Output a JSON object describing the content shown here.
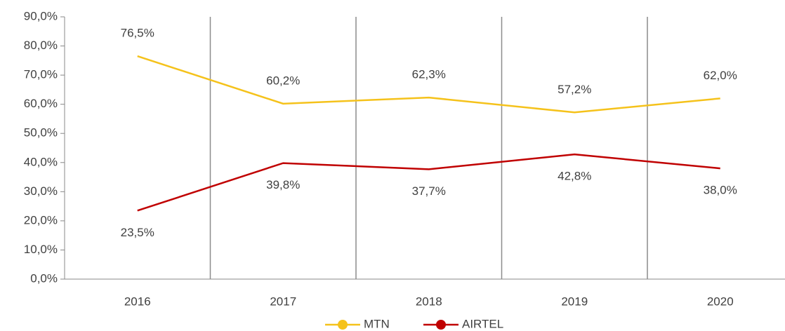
{
  "chart_data": {
    "type": "line",
    "categories": [
      "2016",
      "2017",
      "2018",
      "2019",
      "2020"
    ],
    "series": [
      {
        "name": "MTN",
        "color": "#f5c21b",
        "values": [
          76.5,
          60.2,
          62.3,
          57.2,
          62.0
        ],
        "value_labels": [
          "76,5%",
          "60,2%",
          "62,3%",
          "57,2%",
          "62,0%"
        ]
      },
      {
        "name": "AIRTEL",
        "color": "#c00000",
        "values": [
          23.5,
          39.8,
          37.7,
          42.8,
          38.0
        ],
        "value_labels": [
          "23,5%",
          "39,8%",
          "37,7%",
          "42,8%",
          "38,0%"
        ]
      }
    ],
    "ylim": [
      0,
      90
    ],
    "yticks": [
      {
        "value": 0,
        "label": "0,0%"
      },
      {
        "value": 10,
        "label": "10,0%"
      },
      {
        "value": 20,
        "label": "20,0%"
      },
      {
        "value": 30,
        "label": "30,0%"
      },
      {
        "value": 40,
        "label": "40,0%"
      },
      {
        "value": 50,
        "label": "50,0%"
      },
      {
        "value": 60,
        "label": "60,0%"
      },
      {
        "value": 70,
        "label": "70,0%"
      },
      {
        "value": 80,
        "label": "80,0%"
      },
      {
        "value": 90,
        "label": "90,0%"
      }
    ],
    "grid": true,
    "legend": "bottom"
  }
}
